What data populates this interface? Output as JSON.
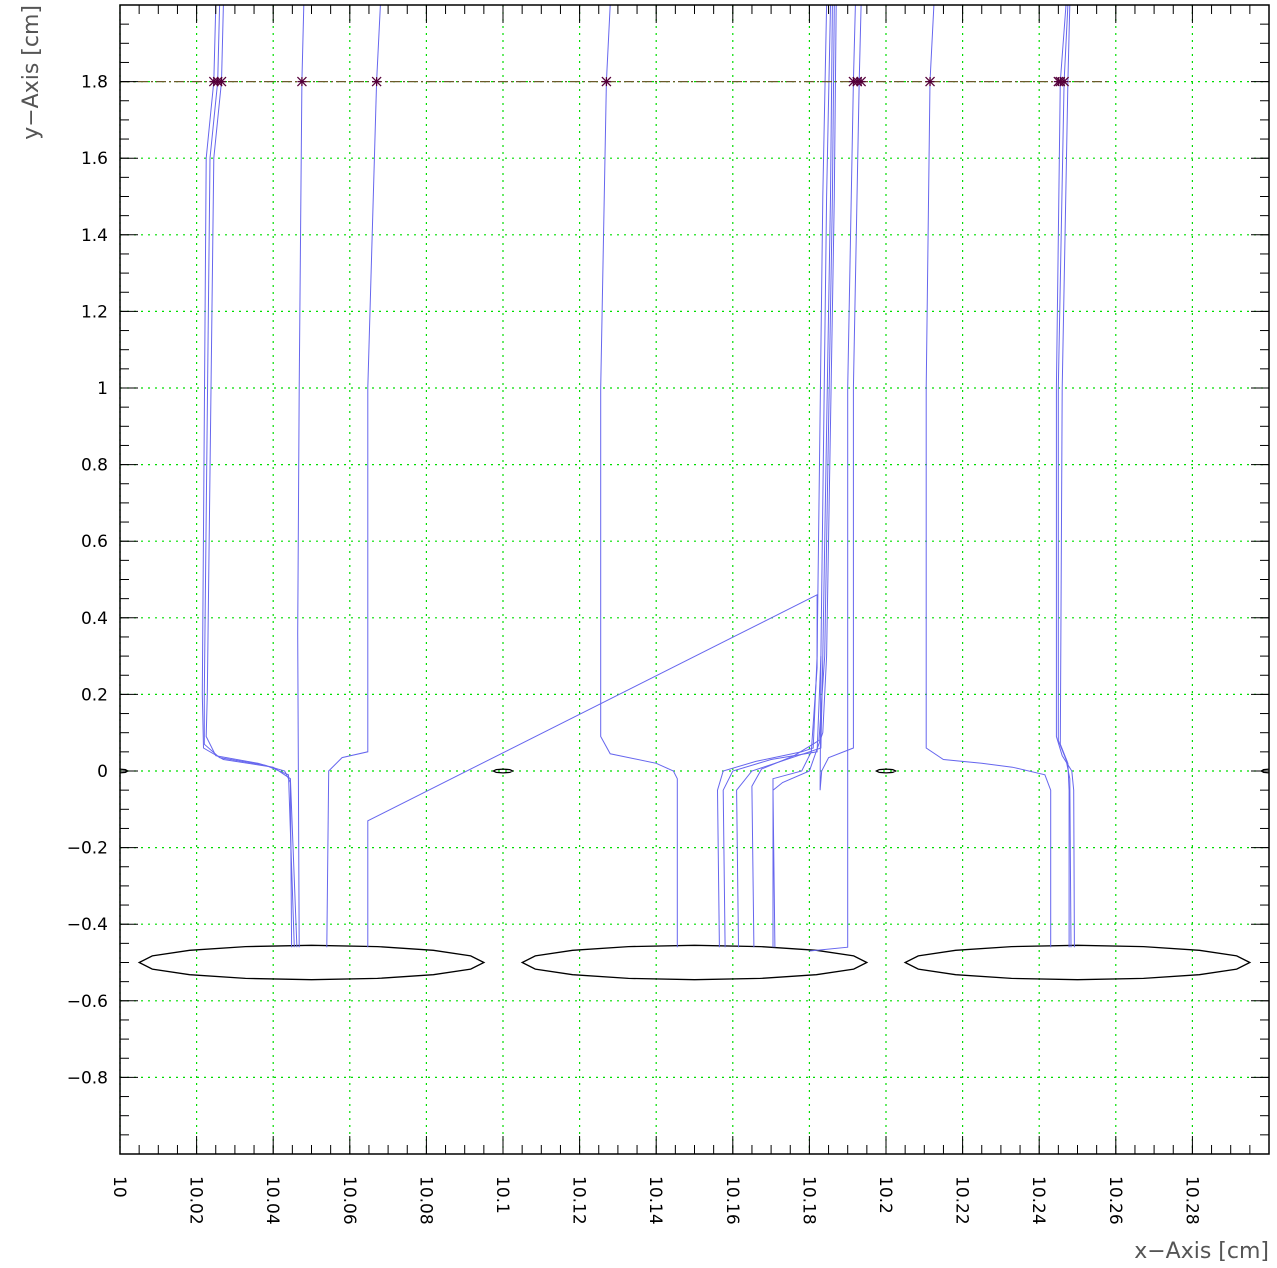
{
  "chart_data": {
    "type": "line",
    "xlabel": "x−Axis [cm]",
    "ylabel": "y−Axis [cm]",
    "xlim": [
      10.0,
      10.3
    ],
    "ylim": [
      -1.0,
      2.0
    ],
    "grid": true,
    "x_ticks": [
      10,
      10.02,
      10.04,
      10.06,
      10.08,
      10.1,
      10.12,
      10.14,
      10.16,
      10.18,
      10.2,
      10.22,
      10.24,
      10.26,
      10.28
    ],
    "x_tick_labels": [
      "10",
      "10.02",
      "10.04",
      "10.06",
      "10.08",
      "10.1",
      "10.12",
      "10.14",
      "10.16",
      "10.18",
      "10.2",
      "10.22",
      "10.24",
      "10.26",
      "10.28"
    ],
    "y_ticks": [
      1.8,
      1.6,
      1.4,
      1.2,
      1,
      0.8,
      0.6,
      0.4,
      0.2,
      0,
      -0.2,
      -0.4,
      -0.6,
      -0.8
    ],
    "y_tick_labels": [
      "1.8",
      "1.6",
      "1.4",
      "1.2",
      "1",
      "0.8",
      "0.6",
      "0.4",
      "0.2",
      "0",
      "−0.2",
      "−0.4",
      "−0.6",
      "−0.8"
    ],
    "colors": {
      "grid": "#00dd00",
      "drift_lines": "#6666ee",
      "electrodes": "#000000",
      "start_line": "#6b5a2a",
      "markers": "#55003a"
    },
    "start_line": {
      "y": 1.8,
      "x": [
        10.0,
        10.258
      ]
    },
    "start_points_x": [
      10.0245,
      10.0255,
      10.0265,
      10.0475,
      10.067,
      10.127,
      10.1915,
      10.1925,
      10.1935,
      10.2115,
      10.245,
      10.2455,
      10.2465
    ],
    "electrodes": [
      {
        "shape": "ellipse",
        "cx": 10.05,
        "cy": -0.5,
        "rx": 0.045,
        "ry": 0.045
      },
      {
        "shape": "ellipse",
        "cx": 10.15,
        "cy": -0.5,
        "rx": 0.045,
        "ry": 0.045
      },
      {
        "shape": "ellipse",
        "cx": 10.25,
        "cy": -0.5,
        "rx": 0.045,
        "ry": 0.045
      },
      {
        "shape": "lens",
        "cx": 10.0,
        "cy": 0.0,
        "rx": 0.002,
        "ry": 0.005
      },
      {
        "shape": "lens",
        "cx": 10.1,
        "cy": 0.0,
        "rx": 0.0025,
        "ry": 0.005
      },
      {
        "shape": "lens",
        "cx": 10.2,
        "cy": 0.0,
        "rx": 0.0025,
        "ry": 0.005
      },
      {
        "shape": "lens",
        "cx": 10.3,
        "cy": 0.0,
        "rx": 0.002,
        "ry": 0.005
      }
    ],
    "series": [
      {
        "points": [
          [
            10.027,
            2.0
          ],
          [
            10.0265,
            1.8
          ],
          [
            10.0245,
            1.6
          ],
          [
            10.0228,
            0.2
          ],
          [
            10.0225,
            0.09
          ],
          [
            10.025,
            0.04
          ],
          [
            10.036,
            0.02
          ],
          [
            10.043,
            0.0
          ],
          [
            10.0445,
            -0.03
          ],
          [
            10.0448,
            -0.46
          ]
        ]
      },
      {
        "points": [
          [
            10.026,
            2.0
          ],
          [
            10.0255,
            1.8
          ],
          [
            10.0235,
            1.6
          ],
          [
            10.022,
            0.2
          ],
          [
            10.022,
            0.07
          ],
          [
            10.026,
            0.035
          ],
          [
            10.038,
            0.015
          ],
          [
            10.044,
            -0.01
          ],
          [
            10.0455,
            -0.46
          ]
        ]
      },
      {
        "points": [
          [
            10.025,
            2.0
          ],
          [
            10.0245,
            1.8
          ],
          [
            10.0225,
            1.6
          ],
          [
            10.0215,
            0.2
          ],
          [
            10.0218,
            0.06
          ],
          [
            10.027,
            0.03
          ],
          [
            10.04,
            0.01
          ],
          [
            10.0445,
            -0.02
          ],
          [
            10.0462,
            -0.46
          ]
        ]
      },
      {
        "points": [
          [
            10.048,
            2.0
          ],
          [
            10.0475,
            1.8
          ],
          [
            10.0468,
            1.0
          ],
          [
            10.0464,
            0.36
          ],
          [
            10.0468,
            -0.46
          ]
        ]
      },
      {
        "points": [
          [
            10.068,
            2.0
          ],
          [
            10.067,
            1.8
          ],
          [
            10.0647,
            1.0
          ],
          [
            10.0647,
            0.05
          ],
          [
            10.058,
            0.035
          ],
          [
            10.0545,
            0.0
          ],
          [
            10.054,
            -0.46
          ]
        ]
      },
      {
        "points": [
          [
            10.0647,
            -0.46
          ],
          [
            10.0647,
            -0.13
          ],
          [
            10.182,
            0.46
          ],
          [
            10.182,
            0.27
          ],
          [
            10.1805,
            0.05
          ],
          [
            10.178,
            0.0
          ],
          [
            10.1705,
            -0.02
          ],
          [
            10.1705,
            -0.46
          ]
        ]
      },
      {
        "points": [
          [
            10.128,
            2.0
          ],
          [
            10.127,
            1.8
          ],
          [
            10.1255,
            1.0
          ],
          [
            10.1255,
            0.09
          ],
          [
            10.128,
            0.045
          ],
          [
            10.14,
            0.02
          ],
          [
            10.1445,
            0.0
          ],
          [
            10.1455,
            -0.02
          ],
          [
            10.1455,
            -0.46
          ]
        ]
      },
      {
        "points": [
          [
            10.1845,
            2.0
          ],
          [
            10.1835,
            1.5
          ],
          [
            10.182,
            0.3
          ],
          [
            10.181,
            0.06
          ],
          [
            10.178,
            0.05
          ],
          [
            10.166,
            0.025
          ],
          [
            10.1575,
            0.0
          ],
          [
            10.156,
            -0.05
          ],
          [
            10.1565,
            -0.46
          ]
        ]
      },
      {
        "points": [
          [
            10.1855,
            2.0
          ],
          [
            10.1845,
            1.5
          ],
          [
            10.183,
            0.3
          ],
          [
            10.182,
            0.05
          ],
          [
            10.17,
            0.03
          ],
          [
            10.16,
            0.0
          ],
          [
            10.1575,
            -0.05
          ],
          [
            10.158,
            -0.46
          ]
        ]
      },
      {
        "points": [
          [
            10.186,
            2.0
          ],
          [
            10.1855,
            1.5
          ],
          [
            10.1835,
            0.3
          ],
          [
            10.183,
            0.06
          ],
          [
            10.177,
            0.04
          ],
          [
            10.165,
            0.0
          ],
          [
            10.161,
            -0.05
          ],
          [
            10.1615,
            -0.46
          ]
        ]
      },
      {
        "points": [
          [
            10.1865,
            2.0
          ],
          [
            10.186,
            1.5
          ],
          [
            10.184,
            0.3
          ],
          [
            10.1825,
            0.08
          ],
          [
            10.176,
            0.04
          ],
          [
            10.1675,
            0.005
          ],
          [
            10.165,
            -0.04
          ],
          [
            10.1655,
            -0.46
          ]
        ]
      },
      {
        "points": [
          [
            10.187,
            2.0
          ],
          [
            10.1865,
            1.5
          ],
          [
            10.1845,
            0.3
          ],
          [
            10.1835,
            0.1
          ],
          [
            10.18,
            0.0
          ],
          [
            10.173,
            -0.03
          ],
          [
            10.1705,
            -0.05
          ],
          [
            10.171,
            -0.46
          ]
        ]
      },
      {
        "points": [
          [
            10.192,
            2.0
          ],
          [
            10.1915,
            1.8
          ],
          [
            10.19,
            1.0
          ],
          [
            10.19,
            -0.46
          ],
          [
            10.18,
            -0.47
          ]
        ]
      },
      {
        "points": [
          [
            10.1935,
            2.0
          ],
          [
            10.193,
            1.8
          ],
          [
            10.1915,
            1.0
          ],
          [
            10.1915,
            0.06
          ],
          [
            10.185,
            0.035
          ],
          [
            10.1832,
            0.0
          ],
          [
            10.1828,
            -0.05
          ],
          [
            10.183,
            0.3
          ]
        ]
      },
      {
        "points": [
          [
            10.2125,
            2.0
          ],
          [
            10.2115,
            1.8
          ],
          [
            10.2105,
            1.0
          ],
          [
            10.2105,
            0.06
          ],
          [
            10.215,
            0.03
          ],
          [
            10.225,
            0.02
          ],
          [
            10.233,
            0.01
          ],
          [
            10.2415,
            -0.01
          ],
          [
            10.243,
            -0.05
          ],
          [
            10.243,
            -0.46
          ]
        ]
      },
      {
        "points": [
          [
            10.247,
            2.0
          ],
          [
            10.2455,
            1.8
          ],
          [
            10.2445,
            1.0
          ],
          [
            10.2445,
            0.09
          ],
          [
            10.246,
            0.04
          ],
          [
            10.2485,
            0.0
          ],
          [
            10.249,
            -0.05
          ],
          [
            10.2492,
            -0.46
          ]
        ]
      },
      {
        "points": [
          [
            10.2475,
            2.0
          ],
          [
            10.2465,
            1.8
          ],
          [
            10.245,
            1.0
          ],
          [
            10.245,
            0.08
          ],
          [
            10.247,
            0.03
          ],
          [
            10.248,
            -0.02
          ],
          [
            10.2483,
            -0.46
          ]
        ]
      },
      {
        "points": [
          [
            10.248,
            2.0
          ],
          [
            10.2475,
            1.8
          ],
          [
            10.246,
            1.0
          ],
          [
            10.2455,
            0.07
          ],
          [
            10.2475,
            0.02
          ],
          [
            10.2478,
            -0.05
          ],
          [
            10.2478,
            -0.46
          ]
        ]
      }
    ]
  }
}
